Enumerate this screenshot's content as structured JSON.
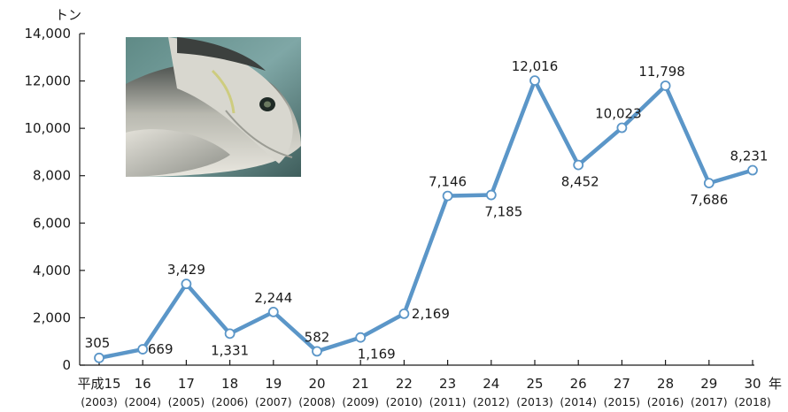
{
  "chart_data": {
    "type": "line",
    "ylabel": "トン",
    "xunit": "年",
    "ylim": [
      0,
      14000
    ],
    "yticks": [
      0,
      2000,
      4000,
      6000,
      8000,
      10000,
      12000,
      14000
    ],
    "ytick_labels": [
      "0",
      "2,000",
      "4,000",
      "6,000",
      "8,000",
      "10,000",
      "12,000",
      "14,000"
    ],
    "categories": [
      "平成15",
      "16",
      "17",
      "18",
      "19",
      "20",
      "21",
      "22",
      "23",
      "24",
      "25",
      "26",
      "27",
      "28",
      "29",
      "30"
    ],
    "categories_sub": [
      "(2003)",
      "(2004)",
      "(2005)",
      "(2006)",
      "(2007)",
      "(2008)",
      "(2009)",
      "(2010)",
      "(2011)",
      "(2012)",
      "(2013)",
      "(2014)",
      "(2015)",
      "(2016)",
      "(2017)",
      "(2018)"
    ],
    "values": [
      305,
      669,
      3429,
      1331,
      2244,
      582,
      1169,
      2169,
      7146,
      7185,
      12016,
      8452,
      10023,
      11798,
      7686,
      8231
    ],
    "value_labels": [
      "305",
      "669",
      "3,429",
      "1,331",
      "2,244",
      "582",
      "1,169",
      "2,169",
      "7,146",
      "7,185",
      "12,016",
      "8,452",
      "10,023",
      "11,798",
      "7,686",
      "8,231"
    ],
    "line_color": "#5b96c8",
    "marker_fill": "#ffffff",
    "grid": false,
    "legend": "none"
  },
  "photo": {
    "subject": "fish"
  }
}
